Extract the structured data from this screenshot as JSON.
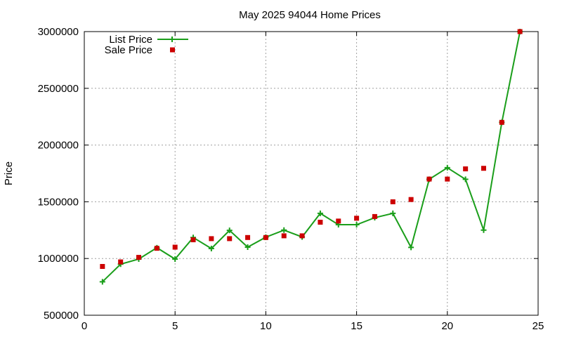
{
  "chart_data": {
    "type": "line",
    "title": "May 2025 94044 Home Prices",
    "xlabel": "",
    "ylabel": "Price",
    "xlim": [
      0,
      25
    ],
    "ylim": [
      500000,
      3000000
    ],
    "x_ticks": [
      0,
      5,
      10,
      15,
      20,
      25
    ],
    "y_ticks": [
      500000,
      1000000,
      1500000,
      2000000,
      2500000,
      3000000
    ],
    "grid": true,
    "legend_position": "top-left",
    "x": [
      1,
      2,
      3,
      4,
      5,
      6,
      7,
      8,
      9,
      10,
      11,
      12,
      13,
      14,
      15,
      16,
      17,
      18,
      19,
      20,
      21,
      22,
      23,
      24
    ],
    "series": [
      {
        "name": "List Price",
        "style": "linespoints",
        "marker": "plus",
        "color": "#1a9e1a",
        "values": [
          795000,
          950000,
          995000,
          1095000,
          995000,
          1185000,
          1088000,
          1248000,
          1100000,
          1188000,
          1250000,
          1190000,
          1398000,
          1298000,
          1298000,
          1360000,
          1398000,
          1098000,
          1698000,
          1800000,
          1698000,
          1250000,
          2200000,
          3000000
        ]
      },
      {
        "name": "Sale Price",
        "style": "points",
        "marker": "square",
        "color": "#cc0000",
        "values": [
          930000,
          970000,
          1010000,
          1090000,
          1100000,
          1165000,
          1175000,
          1175000,
          1185000,
          1185000,
          1200000,
          1200000,
          1320000,
          1330000,
          1355000,
          1370000,
          1500000,
          1520000,
          1700000,
          1700000,
          1790000,
          1795000,
          2200000,
          3000000
        ]
      }
    ]
  }
}
